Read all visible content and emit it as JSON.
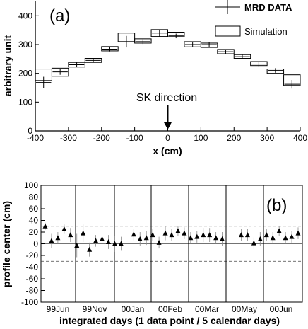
{
  "chart_data": [
    {
      "type": "step",
      "panel_label": "(a)",
      "xlabel": "x (cm)",
      "ylabel": "arbitrary unit",
      "xlim": [
        -400,
        400
      ],
      "ylim": [
        0,
        450
      ],
      "x_ticks": [
        "-400",
        "-300",
        "-200",
        "-100",
        "0",
        "100",
        "200",
        "300",
        "400"
      ],
      "y_ticks": [
        "0",
        "100",
        "200",
        "300",
        "400"
      ],
      "annotation": "SK direction",
      "legend": {
        "data_label": "MRD DATA",
        "sim_label": "Simulation",
        "position": "top-right"
      },
      "bin_centers": [
        -375,
        -325,
        -275,
        -225,
        -175,
        -125,
        -75,
        -25,
        25,
        75,
        125,
        175,
        225,
        275,
        325,
        375
      ],
      "simulation": {
        "name": "Simulation",
        "low": [
          175,
          190,
          222,
          238,
          278,
          310,
          305,
          328,
          327,
          292,
          290,
          268,
          252,
          227,
          200,
          158
        ],
        "high": [
          215,
          218,
          238,
          252,
          293,
          340,
          320,
          352,
          343,
          310,
          305,
          283,
          265,
          241,
          215,
          195
        ]
      },
      "data": {
        "name": "MRD DATA",
        "y": [
          168,
          205,
          230,
          245,
          284,
          310,
          310,
          340,
          330,
          300,
          300,
          275,
          258,
          232,
          210,
          162
        ],
        "err": [
          20,
          10,
          8,
          8,
          8,
          20,
          8,
          12,
          8,
          8,
          8,
          8,
          8,
          8,
          8,
          15
        ]
      }
    },
    {
      "type": "scatter",
      "panel_label": "(b)",
      "xlabel": "integrated days (1 data point / 5 calendar days)",
      "ylabel": "profile center (cm)",
      "ylim": [
        -100,
        100
      ],
      "y_ticks": [
        "100",
        "80",
        "60",
        "40",
        "20",
        "0",
        "-20",
        "-40",
        "-60",
        "-80",
        "-100"
      ],
      "month_labels": [
        "99Jun",
        "99Nov",
        "00Jan",
        "00Feb",
        "00Mar",
        "00May",
        "00Jun"
      ],
      "reference_lines": {
        "zero": 0,
        "upper": 30,
        "lower": -30
      },
      "month_boundaries": [
        7,
        14,
        22,
        29,
        36
      ],
      "x": [
        0,
        1,
        2,
        3,
        4,
        5,
        6,
        7,
        8,
        9,
        10,
        11,
        12,
        14,
        15,
        16,
        17,
        18,
        19,
        20,
        21,
        22,
        23,
        24,
        25,
        26,
        27,
        28,
        31,
        32,
        33,
        34,
        35,
        36,
        37,
        38,
        39,
        40
      ],
      "y": [
        30,
        5,
        10,
        25,
        15,
        -3,
        18,
        -10,
        5,
        8,
        3,
        0,
        0,
        16,
        8,
        10,
        15,
        2,
        18,
        15,
        22,
        18,
        10,
        12,
        15,
        15,
        10,
        8,
        15,
        15,
        1,
        8,
        15,
        10,
        22,
        10,
        12,
        18
      ],
      "err": [
        6,
        12,
        10,
        8,
        12,
        20,
        15,
        12,
        10,
        10,
        12,
        14,
        12,
        10,
        12,
        12,
        10,
        10,
        12,
        10,
        8,
        10,
        10,
        10,
        12,
        12,
        10,
        12,
        10,
        10,
        10,
        12,
        10,
        10,
        8,
        10,
        10,
        10
      ]
    }
  ]
}
